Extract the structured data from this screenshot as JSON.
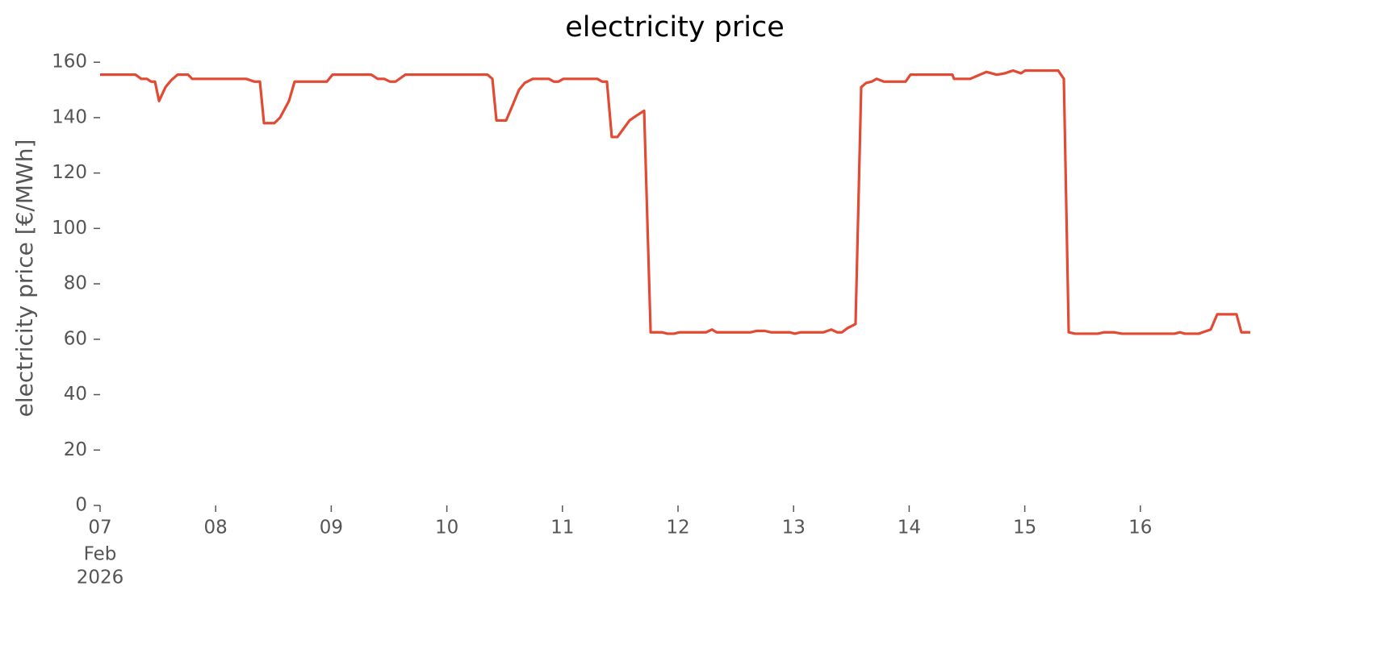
{
  "chart_data": {
    "type": "line",
    "title": "electricity price",
    "ylabel": "electricity price [€/MWh]",
    "x": [
      7.0,
      7.307,
      7.356,
      7.405,
      7.44,
      7.475,
      7.51,
      7.566,
      7.615,
      7.67,
      7.761,
      7.796,
      8.264,
      8.334,
      8.383,
      8.418,
      8.508,
      8.557,
      8.634,
      8.683,
      8.962,
      9.011,
      9.207,
      9.346,
      9.402,
      9.458,
      9.507,
      9.556,
      9.64,
      9.835,
      10.352,
      10.394,
      10.429,
      10.513,
      10.554,
      10.624,
      10.673,
      10.743,
      10.883,
      10.925,
      10.966,
      11.008,
      11.302,
      11.344,
      11.385,
      11.427,
      11.476,
      11.581,
      11.651,
      11.707,
      11.763,
      11.86,
      11.909,
      11.965,
      12.014,
      12.244,
      12.293,
      12.335,
      12.628,
      12.677,
      12.754,
      12.803,
      12.964,
      13.013,
      13.061,
      13.257,
      13.327,
      13.376,
      13.418,
      13.466,
      13.536,
      13.585,
      13.627,
      13.676,
      13.718,
      13.781,
      13.969,
      14.011,
      14.374,
      14.388,
      14.528,
      14.584,
      14.668,
      14.758,
      14.828,
      14.898,
      14.968,
      15.003,
      15.289,
      15.338,
      15.38,
      15.436,
      15.631,
      15.687,
      15.771,
      15.841,
      16.295,
      16.344,
      16.385,
      16.504,
      16.609,
      16.665,
      16.832,
      16.874,
      16.951
    ],
    "series": [
      {
        "name": "electricity price",
        "color": "#e24a33",
        "values": [
          155.5,
          155.5,
          154,
          154,
          153,
          153,
          146,
          151,
          153.5,
          155.5,
          155.5,
          154,
          154,
          153,
          153,
          138,
          138,
          140,
          146,
          153,
          153,
          155.5,
          155.5,
          155.5,
          154,
          154,
          153,
          153,
          155.5,
          155.5,
          155.5,
          154,
          139,
          139,
          143,
          150,
          152.5,
          154,
          154,
          153,
          153,
          154,
          154,
          153,
          153,
          133,
          133,
          139,
          141,
          142.5,
          62.5,
          62.5,
          62,
          62,
          62.5,
          62.5,
          63.5,
          62.5,
          62.5,
          63,
          63,
          62.5,
          62.5,
          62,
          62.5,
          62.5,
          63.5,
          62.5,
          62.5,
          64,
          65.5,
          151,
          152.5,
          153,
          154,
          153,
          153,
          155.5,
          155.5,
          154,
          154,
          155,
          156.5,
          155.5,
          156,
          157,
          156,
          157,
          157,
          154,
          62.5,
          62,
          62,
          62.5,
          62.5,
          62,
          62,
          62.5,
          62,
          62,
          63.5,
          69,
          69,
          62.5,
          62.5
        ]
      }
    ],
    "xlim": [
      7,
      16.951
    ],
    "xticks": [
      {
        "value": 7,
        "label": "07"
      },
      {
        "value": 8,
        "label": "08"
      },
      {
        "value": 9,
        "label": "09"
      },
      10,
      11,
      12,
      13,
      14,
      15,
      16
    ],
    "xtick_sublabels": [
      "Feb",
      "2026"
    ],
    "ylim": [
      0,
      165
    ],
    "yticks": [
      0,
      20,
      40,
      60,
      80,
      100,
      120,
      140,
      160
    ],
    "grid": false
  }
}
